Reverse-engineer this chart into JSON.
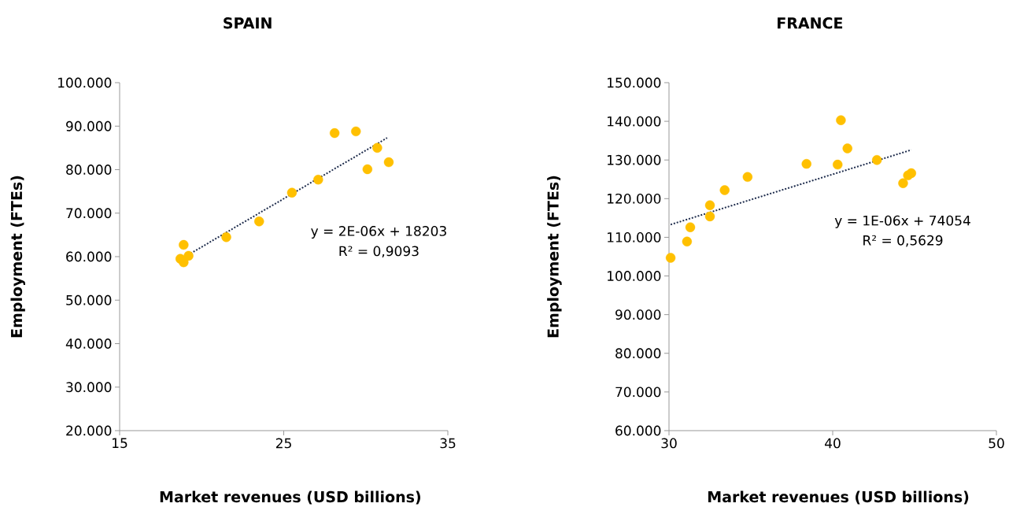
{
  "chart_data": [
    {
      "type": "scatter",
      "title": "SPAIN",
      "xlabel": "Market revenues (USD billions)",
      "ylabel": "Employment (FTEs)",
      "xlim": [
        15,
        35
      ],
      "xticks": [
        15,
        25,
        35
      ],
      "ylim": [
        20000,
        100000
      ],
      "yticks": [
        {
          "value": 20000,
          "label": "20.000"
        },
        {
          "value": 30000,
          "label": "30.000"
        },
        {
          "value": 40000,
          "label": "40.000"
        },
        {
          "value": 50000,
          "label": "50.000"
        },
        {
          "value": 60000,
          "label": "60.000"
        },
        {
          "value": 70000,
          "label": "70.000"
        },
        {
          "value": 80000,
          "label": "80.000"
        },
        {
          "value": 90000,
          "label": "90.000"
        },
        {
          "value": 100000,
          "label": "100.000"
        }
      ],
      "grid": false,
      "series": [
        {
          "color": "#ffc000",
          "marker": "circle",
          "x": [
            18.7,
            18.9,
            18.9,
            19.2,
            21.5,
            23.5,
            25.5,
            27.1,
            28.1,
            29.4,
            30.1,
            30.7,
            31.4
          ],
          "values": [
            59500,
            62700,
            58700,
            60200,
            64500,
            68100,
            74700,
            77700,
            88400,
            88800,
            80100,
            85000,
            81700
          ]
        },
        {
          "type": "line",
          "color": "#1f2d4d",
          "marker": "none",
          "line_style": "dotted",
          "x": [
            18.5,
            31.3
          ],
          "values": [
            58900,
            87300
          ]
        }
      ],
      "annotations": [
        "y = 2E-06x + 18203",
        "R² = 0,9093"
      ]
    },
    {
      "type": "scatter",
      "title": "FRANCE",
      "xlabel": "Market revenues (USD billions)",
      "ylabel": "Employment (FTEs)",
      "xlim": [
        30,
        50
      ],
      "xticks": [
        30,
        40,
        50
      ],
      "ylim": [
        60000,
        150000
      ],
      "yticks": [
        {
          "value": 60000,
          "label": "60.000"
        },
        {
          "value": 70000,
          "label": "70.000"
        },
        {
          "value": 80000,
          "label": "80.000"
        },
        {
          "value": 90000,
          "label": "90.000"
        },
        {
          "value": 100000,
          "label": "100.000"
        },
        {
          "value": 110000,
          "label": "110.000"
        },
        {
          "value": 120000,
          "label": "120.000"
        },
        {
          "value": 130000,
          "label": "130.000"
        },
        {
          "value": 140000,
          "label": "140.000"
        },
        {
          "value": 150000,
          "label": "150.000"
        }
      ],
      "grid": false,
      "series": [
        {
          "color": "#ffc000",
          "marker": "circle",
          "x": [
            30.1,
            31.1,
            31.3,
            32.5,
            32.5,
            33.4,
            34.8,
            38.4,
            40.3,
            40.5,
            40.9,
            42.7,
            44.3,
            44.6,
            44.8
          ],
          "values": [
            104700,
            108900,
            112600,
            118300,
            115400,
            122200,
            125600,
            129000,
            128800,
            140300,
            133000,
            130000,
            124000,
            126000,
            126600
          ]
        },
        {
          "type": "line",
          "color": "#1f2d4d",
          "marker": "none",
          "line_style": "dotted",
          "x": [
            30.1,
            44.8
          ],
          "values": [
            113300,
            132600
          ]
        }
      ],
      "annotations": [
        "y = 1E-06x + 74054",
        "R² = 0,5629"
      ]
    }
  ]
}
